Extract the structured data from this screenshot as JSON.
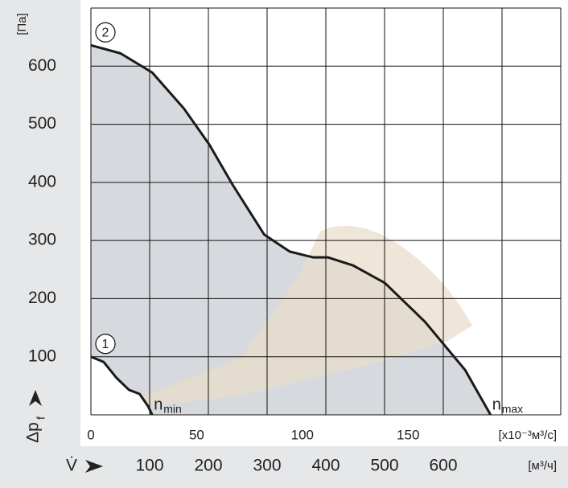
{
  "chart_data": {
    "type": "line",
    "y_unit": "[Па]",
    "y_symbol": "Δp",
    "y_symbol_sub": "f",
    "x_unit": "[x10⁻³м³/с]",
    "x_symbol": "V̇",
    "x2_unit": "[м³/ч]",
    "xlim": [
      0,
      222.2
    ],
    "xticks": [
      0,
      50,
      100,
      150
    ],
    "x2lim": [
      0,
      800
    ],
    "x2ticks": [
      100,
      200,
      300,
      400,
      500,
      600
    ],
    "x2grid": [
      100,
      200,
      300,
      400,
      500,
      600,
      700,
      800
    ],
    "ylim": [
      0,
      700
    ],
    "yticks": [
      100,
      200,
      300,
      400,
      500,
      600
    ],
    "ygrid": [
      100,
      200,
      300,
      400,
      500,
      600,
      700
    ],
    "grid": true,
    "series": [
      {
        "name": "2",
        "color": "#1a1a1a",
        "end_label": "n",
        "end_sub": "max",
        "x": [
          0,
          14,
          29,
          44,
          56,
          67,
          82,
          94,
          105,
          112,
          124,
          139,
          158,
          177,
          189
        ],
        "values": [
          636,
          622,
          589,
          527,
          465,
          396,
          310,
          281,
          271,
          271,
          257,
          227,
          160,
          77,
          0
        ]
      },
      {
        "name": "1",
        "color": "#1a1a1a",
        "end_label": "n",
        "end_sub": "min",
        "x": [
          0,
          6,
          12,
          18,
          23,
          27,
          29
        ],
        "values": [
          100,
          91,
          64,
          43,
          36,
          15,
          0
        ]
      }
    ]
  }
}
